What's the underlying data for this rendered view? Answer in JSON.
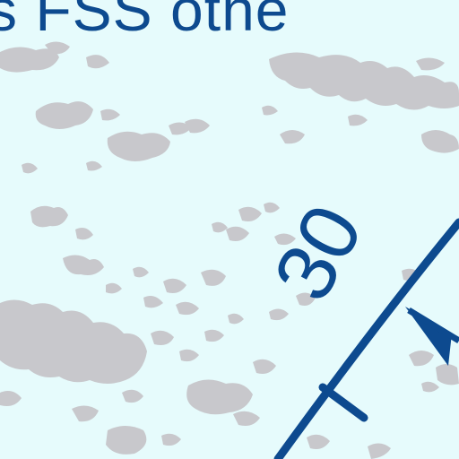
{
  "map": {
    "caption": "ks FSS othe",
    "radial_label": "30",
    "colors": {
      "background": "#e6fbfc",
      "terrain_shading": "#c8c8cc",
      "aeronautical_ink": "#0d4a8f"
    },
    "symbols": {
      "course_line": "vor-compass-rose-arc",
      "arrow": "course-direction-arrowhead",
      "tick": "compass-rose-tick-mark"
    }
  }
}
